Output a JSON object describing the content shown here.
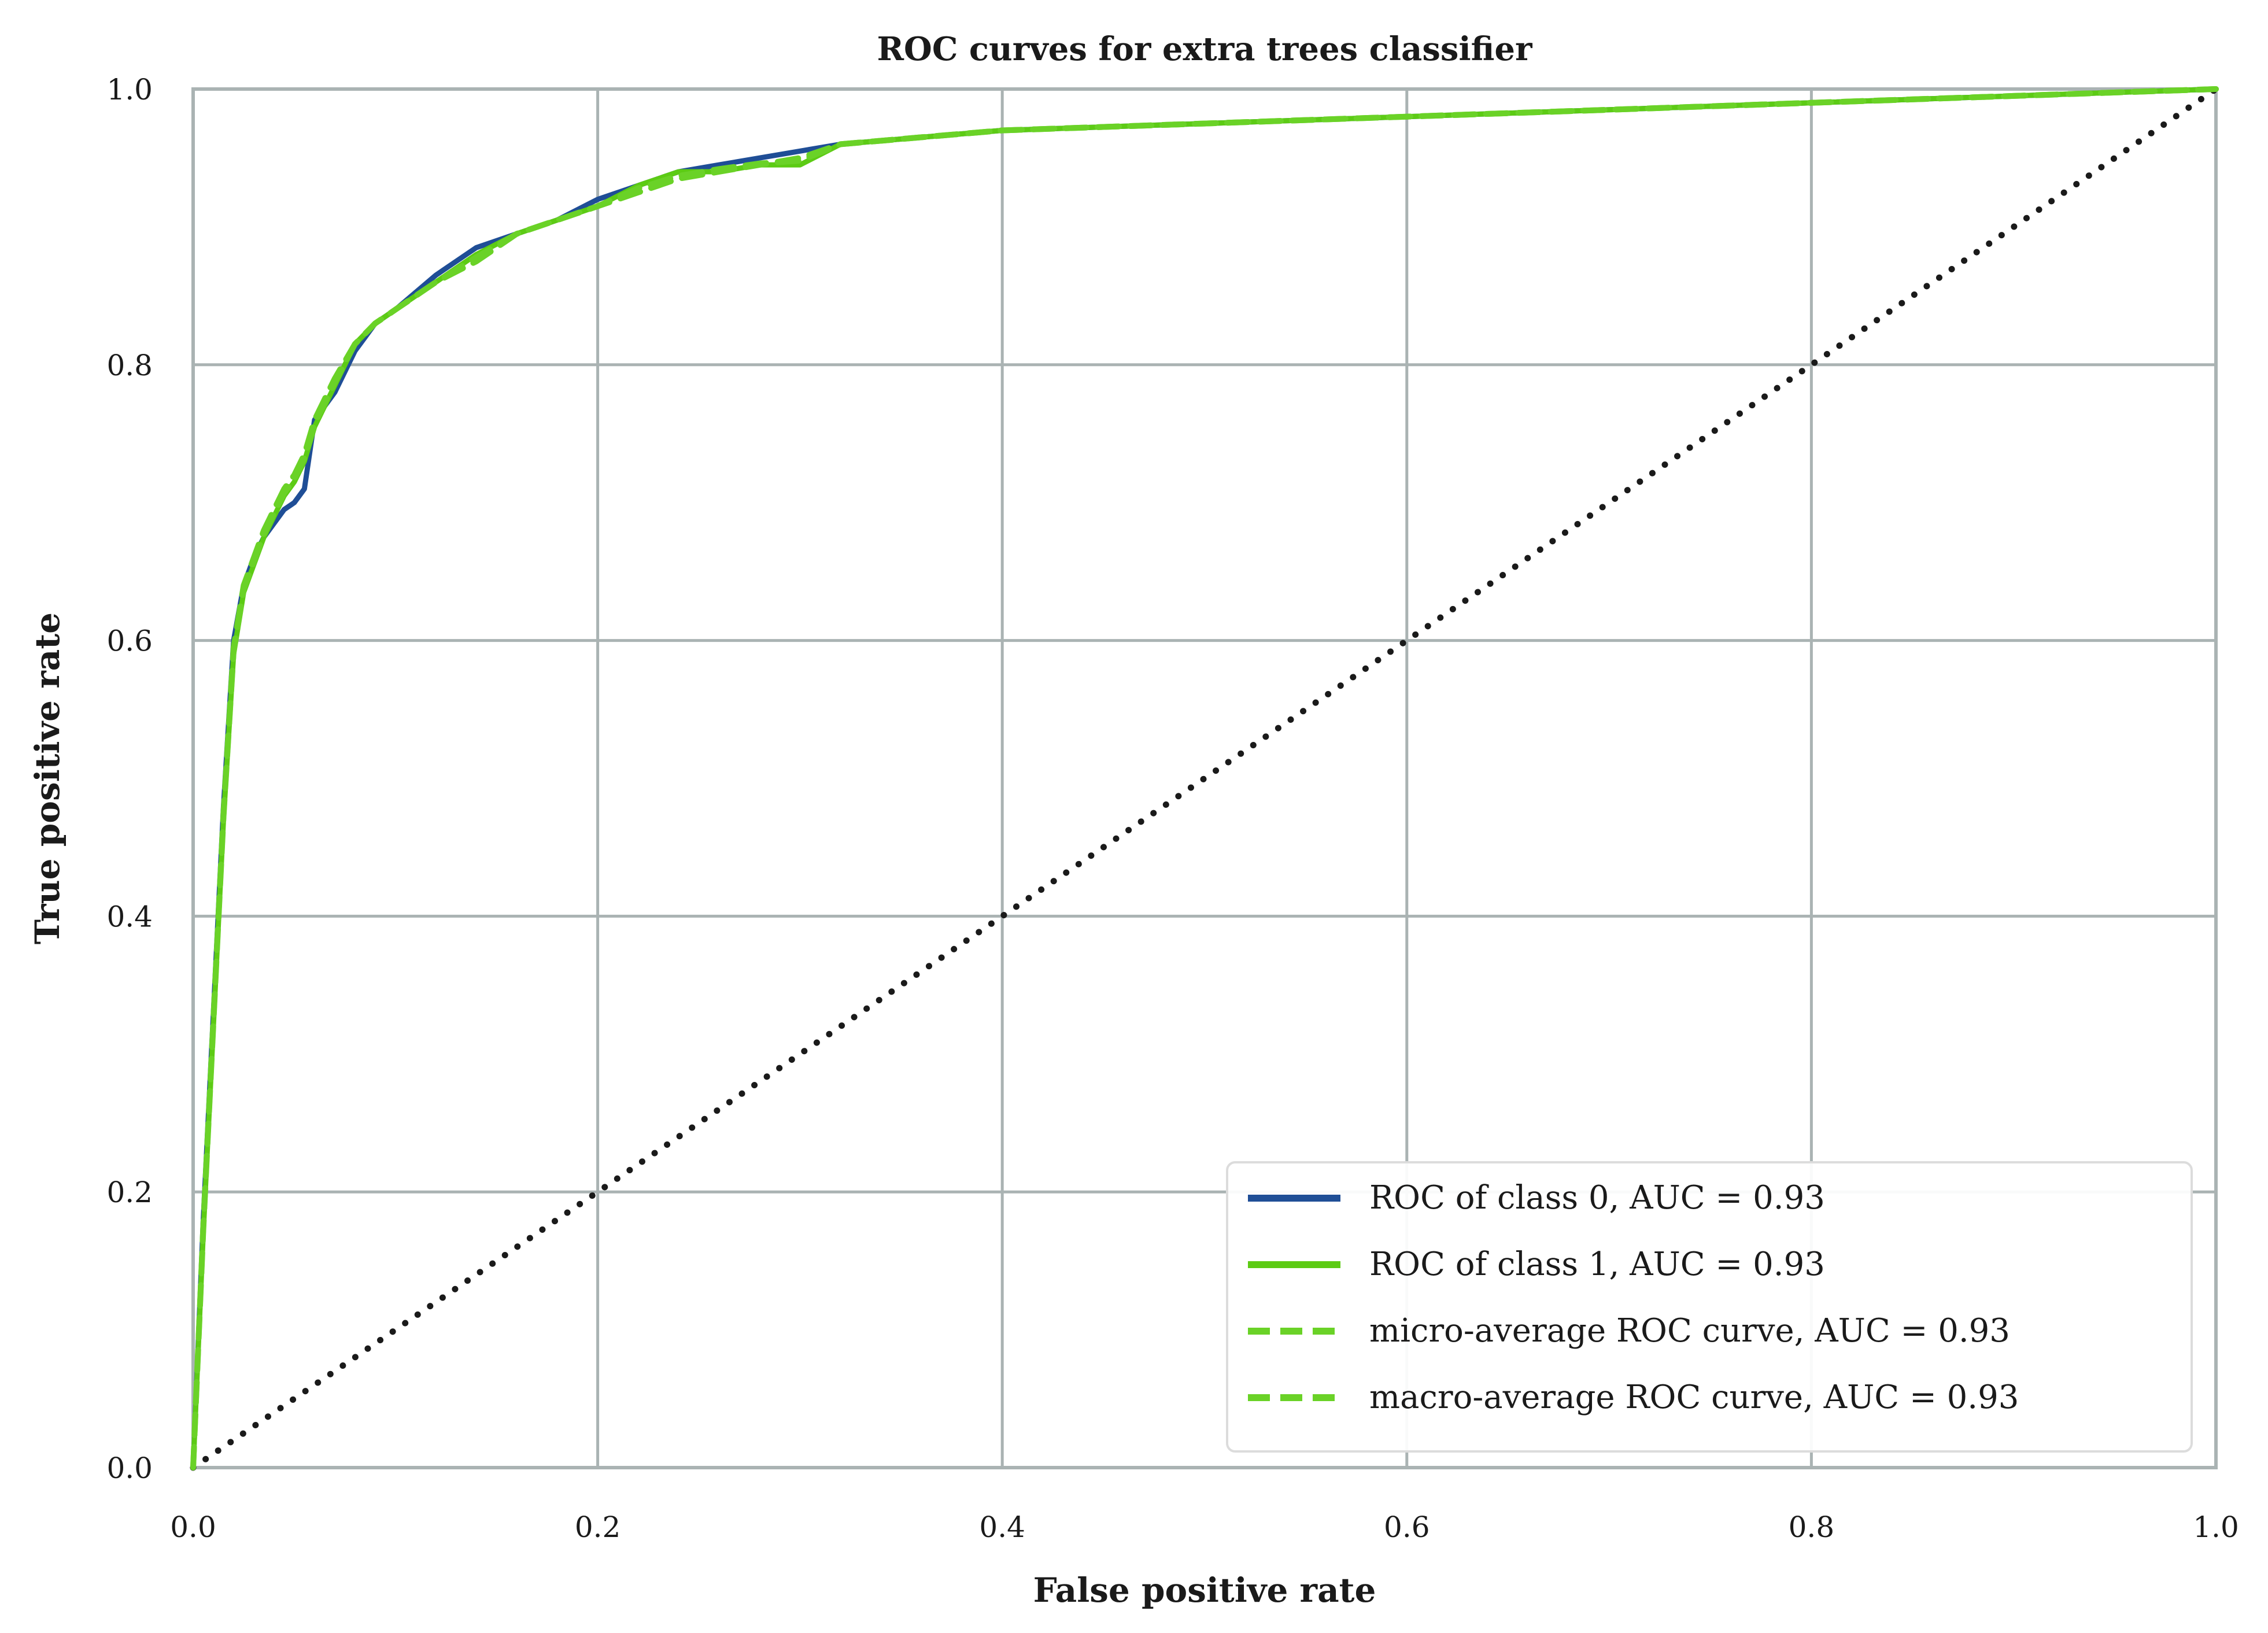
{
  "chart_data": {
    "type": "line",
    "title": "ROC curves for extra trees classifier",
    "xlabel": "False positive rate",
    "ylabel": "True positive rate",
    "xlim": [
      0.0,
      1.0
    ],
    "ylim": [
      0.0,
      1.0
    ],
    "x_ticks": [
      "0.0",
      "0.2",
      "0.4",
      "0.6",
      "0.8",
      "1.0"
    ],
    "y_ticks": [
      "0.0",
      "0.2",
      "0.4",
      "0.6",
      "0.8",
      "1.0"
    ],
    "grid": true,
    "legend_position": "lower-right",
    "series": [
      {
        "name": "ROC of class 0, AUC = 0.93",
        "color": "#1f4e96",
        "style": "solid",
        "x": [
          0,
          0.005,
          0.01,
          0.015,
          0.02,
          0.025,
          0.03,
          0.035,
          0.04,
          0.045,
          0.05,
          0.055,
          0.06,
          0.065,
          0.07,
          0.08,
          0.09,
          0.1,
          0.12,
          0.14,
          0.16,
          0.18,
          0.2,
          0.22,
          0.24,
          0.26,
          0.28,
          0.3,
          0.32,
          0.36,
          0.4,
          0.5,
          0.6,
          0.7,
          0.8,
          0.9,
          1.0
        ],
        "y": [
          0,
          0.18,
          0.33,
          0.48,
          0.6,
          0.64,
          0.66,
          0.675,
          0.685,
          0.695,
          0.7,
          0.71,
          0.76,
          0.77,
          0.78,
          0.81,
          0.83,
          0.84,
          0.865,
          0.885,
          0.895,
          0.905,
          0.92,
          0.93,
          0.94,
          0.945,
          0.95,
          0.955,
          0.96,
          0.965,
          0.97,
          0.975,
          0.98,
          0.985,
          0.99,
          0.995,
          1.0
        ]
      },
      {
        "name": "ROC of class 1, AUC = 0.93",
        "color": "#5ccb14",
        "style": "solid",
        "x": [
          0,
          0.005,
          0.01,
          0.015,
          0.02,
          0.025,
          0.03,
          0.035,
          0.04,
          0.045,
          0.05,
          0.055,
          0.06,
          0.065,
          0.07,
          0.08,
          0.09,
          0.1,
          0.12,
          0.14,
          0.16,
          0.18,
          0.2,
          0.22,
          0.24,
          0.26,
          0.28,
          0.3,
          0.32,
          0.36,
          0.4,
          0.5,
          0.6,
          0.7,
          0.8,
          0.9,
          1.0
        ],
        "y": [
          0,
          0.17,
          0.32,
          0.47,
          0.59,
          0.635,
          0.655,
          0.675,
          0.69,
          0.705,
          0.715,
          0.73,
          0.755,
          0.77,
          0.785,
          0.815,
          0.83,
          0.84,
          0.86,
          0.88,
          0.895,
          0.905,
          0.915,
          0.93,
          0.94,
          0.94,
          0.945,
          0.945,
          0.96,
          0.965,
          0.97,
          0.975,
          0.98,
          0.985,
          0.99,
          0.995,
          1.0
        ]
      },
      {
        "name": "micro-average ROC curve, AUC = 0.93",
        "color": "#6ad227",
        "style": "dashed",
        "x": [
          0,
          0.005,
          0.01,
          0.015,
          0.02,
          0.025,
          0.03,
          0.035,
          0.04,
          0.045,
          0.05,
          0.055,
          0.06,
          0.065,
          0.07,
          0.08,
          0.09,
          0.1,
          0.12,
          0.14,
          0.16,
          0.18,
          0.2,
          0.22,
          0.24,
          0.26,
          0.28,
          0.3,
          0.32,
          0.36,
          0.4,
          0.5,
          0.6,
          0.7,
          0.8,
          0.9,
          1.0
        ],
        "y": [
          0,
          0.175,
          0.325,
          0.475,
          0.595,
          0.64,
          0.66,
          0.68,
          0.695,
          0.71,
          0.72,
          0.735,
          0.76,
          0.775,
          0.79,
          0.815,
          0.83,
          0.84,
          0.86,
          0.875,
          0.895,
          0.905,
          0.915,
          0.925,
          0.935,
          0.94,
          0.945,
          0.95,
          0.96,
          0.965,
          0.97,
          0.975,
          0.98,
          0.985,
          0.99,
          0.995,
          1.0
        ]
      },
      {
        "name": "macro-average ROC curve, AUC = 0.93",
        "color": "#6ad227",
        "style": "dashed",
        "x": [
          0,
          0.005,
          0.01,
          0.015,
          0.02,
          0.025,
          0.03,
          0.035,
          0.04,
          0.045,
          0.05,
          0.055,
          0.06,
          0.065,
          0.07,
          0.08,
          0.09,
          0.1,
          0.12,
          0.14,
          0.16,
          0.18,
          0.2,
          0.22,
          0.24,
          0.26,
          0.28,
          0.3,
          0.32,
          0.36,
          0.4,
          0.5,
          0.6,
          0.7,
          0.8,
          0.9,
          1.0
        ],
        "y": [
          0,
          0.172,
          0.322,
          0.472,
          0.592,
          0.637,
          0.657,
          0.677,
          0.692,
          0.707,
          0.717,
          0.732,
          0.757,
          0.772,
          0.787,
          0.815,
          0.83,
          0.84,
          0.86,
          0.878,
          0.895,
          0.905,
          0.915,
          0.928,
          0.937,
          0.942,
          0.946,
          0.948,
          0.96,
          0.965,
          0.97,
          0.975,
          0.98,
          0.985,
          0.99,
          0.995,
          1.0
        ]
      }
    ],
    "reference_line": {
      "x": [
        0.0,
        1.0
      ],
      "y": [
        0.0,
        1.0
      ],
      "color": "#1a1a1a",
      "style": "dotted"
    }
  }
}
